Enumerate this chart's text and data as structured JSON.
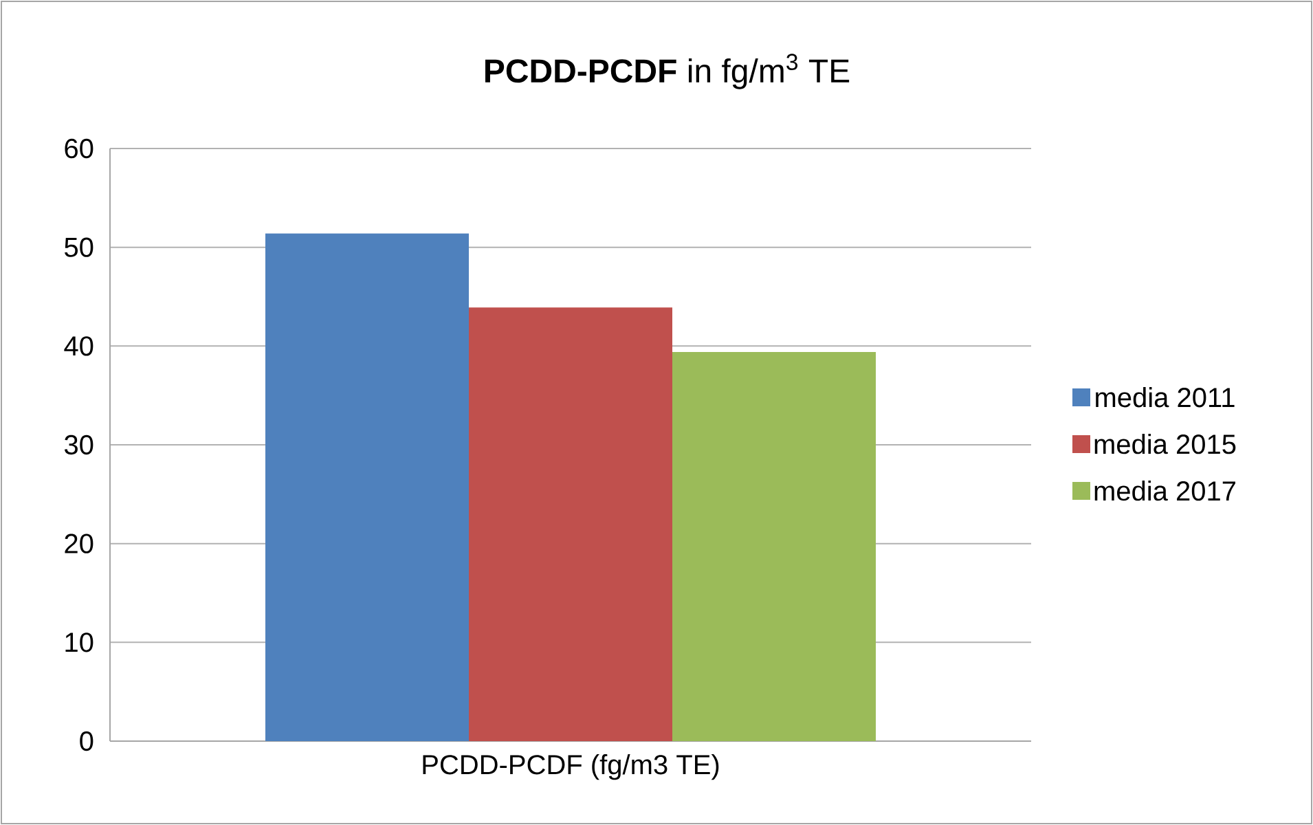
{
  "chart_data": {
    "type": "bar",
    "title": "**PCDD-PCDF** in fg/m$^{3}$ TE",
    "categories": [
      "PCDD-PCDF (fg/m3 TE)"
    ],
    "series": [
      {
        "name": "media 2011",
        "color": "#4f81bd",
        "values": [
          51.4
        ]
      },
      {
        "name": "media 2015",
        "color": "#c0504d",
        "values": [
          43.9
        ]
      },
      {
        "name": "media 2017",
        "color": "#9bbb59",
        "values": [
          39.4
        ]
      }
    ],
    "ylim": [
      0,
      60
    ],
    "yticks": [
      0,
      10,
      20,
      30,
      40,
      50,
      60
    ],
    "grid": "y",
    "legend": "right"
  }
}
